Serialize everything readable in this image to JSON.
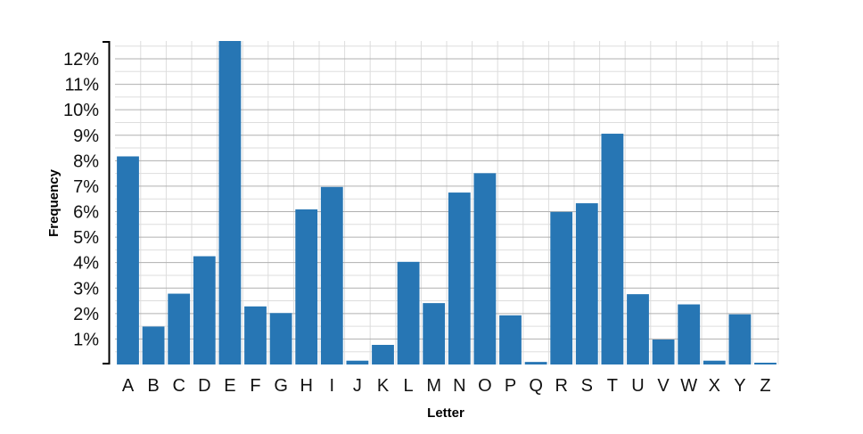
{
  "chart_data": {
    "type": "bar",
    "xlabel": "Letter",
    "ylabel": "Frequency",
    "categories": [
      "A",
      "B",
      "C",
      "D",
      "E",
      "F",
      "G",
      "H",
      "I",
      "J",
      "K",
      "L",
      "M",
      "N",
      "O",
      "P",
      "Q",
      "R",
      "S",
      "T",
      "U",
      "V",
      "W",
      "X",
      "Y",
      "Z"
    ],
    "values": [
      8.17,
      1.49,
      2.78,
      4.25,
      12.7,
      2.28,
      2.02,
      6.09,
      6.97,
      0.15,
      0.77,
      4.03,
      2.41,
      6.75,
      7.51,
      1.93,
      0.1,
      5.99,
      6.33,
      9.06,
      2.76,
      0.98,
      2.36,
      0.15,
      1.97,
      0.07
    ],
    "ylim": [
      0,
      12.7
    ],
    "yticks": [
      1,
      2,
      3,
      4,
      5,
      6,
      7,
      8,
      9,
      10,
      11,
      12
    ],
    "ytick_labels": [
      "1%",
      "2%",
      "3%",
      "4%",
      "5%",
      "6%",
      "7%",
      "8%",
      "9%",
      "10%",
      "11%",
      "12%"
    ],
    "grid": true,
    "colors": {
      "bar": "#2776b4",
      "grid_major": "#b0b0b0",
      "grid_minor": "#dddddd",
      "axis": "#000000"
    }
  }
}
